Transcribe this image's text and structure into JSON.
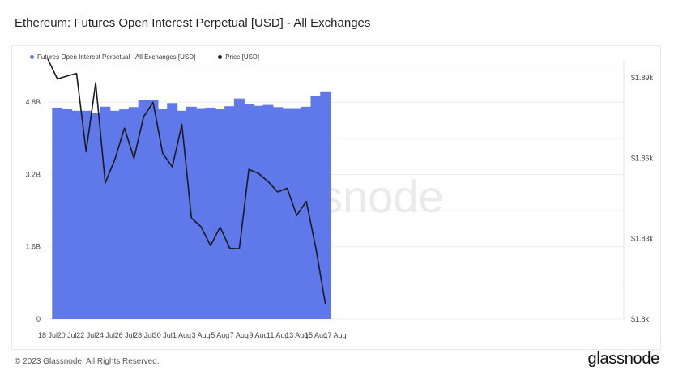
{
  "page": {
    "title": "Ethereum: Futures Open Interest Perpetual [USD] - All Exchanges",
    "footer": "© 2023 Glassnode. All Rights Reserved.",
    "logo": "glassnode",
    "watermark": "glassnode"
  },
  "colors": {
    "bar": "#6079EA",
    "line": "#1a1a1a",
    "grid": "#ececf1"
  },
  "chart_data": {
    "type": "bar+line",
    "title": "Ethereum: Futures Open Interest Perpetual [USD] - All Exchanges",
    "legend_position": "top-left",
    "grid": true,
    "x_ticks": [
      "18 Jul",
      "20 Jul",
      "22 Jul",
      "24 Jul",
      "26 Jul",
      "28 Jul",
      "30 Jul",
      "1 Aug",
      "3 Aug",
      "5 Aug",
      "7 Aug",
      "9 Aug",
      "11 Aug",
      "13 Aug",
      "15 Aug",
      "17 Aug"
    ],
    "y_left": {
      "ticks": [
        "0",
        "1.6B",
        "3.2B",
        "4.8B"
      ],
      "range": [
        0,
        5.7
      ]
    },
    "y_right": {
      "ticks": [
        "$1.8k",
        "$1.83k",
        "$1.86k",
        "$1.89k"
      ],
      "range": [
        1800,
        1896
      ]
    },
    "series": [
      {
        "name": "Futures Open Interest Perpetual - All Exchanges [USD]",
        "kind": "bar",
        "axis": "left",
        "unit": "B USD",
        "x": [
          "19 Jul",
          "20 Jul",
          "21 Jul",
          "22 Jul",
          "23 Jul",
          "24 Jul",
          "25 Jul",
          "26 Jul",
          "27 Jul",
          "28 Jul",
          "29 Jul",
          "30 Jul",
          "31 Jul",
          "1 Aug",
          "2 Aug",
          "3 Aug",
          "4 Aug",
          "5 Aug",
          "6 Aug",
          "7 Aug",
          "8 Aug",
          "9 Aug",
          "10 Aug",
          "11 Aug",
          "12 Aug",
          "13 Aug",
          "14 Aug",
          "15 Aug",
          "16 Aug"
        ],
        "values": [
          4.68,
          4.65,
          4.61,
          4.61,
          4.56,
          4.7,
          4.61,
          4.64,
          4.69,
          4.84,
          4.85,
          4.65,
          4.78,
          4.61,
          4.7,
          4.67,
          4.68,
          4.66,
          4.71,
          4.88,
          4.75,
          4.72,
          4.74,
          4.69,
          4.67,
          4.67,
          4.7,
          4.94,
          5.04
        ]
      },
      {
        "name": "Price [USD]",
        "kind": "line",
        "axis": "right",
        "unit": "USD",
        "x": [
          "18 Jul",
          "19 Jul",
          "20 Jul",
          "21 Jul",
          "22 Jul",
          "23 Jul",
          "24 Jul",
          "25 Jul",
          "26 Jul",
          "27 Jul",
          "28 Jul",
          "29 Jul",
          "30 Jul",
          "31 Jul",
          "1 Aug",
          "2 Aug",
          "3 Aug",
          "4 Aug",
          "5 Aug",
          "6 Aug",
          "7 Aug",
          "8 Aug",
          "9 Aug",
          "10 Aug",
          "11 Aug",
          "12 Aug",
          "13 Aug",
          "14 Aug",
          "15 Aug",
          "16 Aug"
        ],
        "values": [
          1897,
          1889.5,
          1890.6,
          1891.6,
          1862.4,
          1888.1,
          1850.7,
          1859.4,
          1871.2,
          1859.9,
          1875.4,
          1880.8,
          1861.8,
          1856.7,
          1872.6,
          1837.7,
          1834.4,
          1827.4,
          1834.3,
          1826.4,
          1826.2,
          1855.8,
          1854.3,
          1851.3,
          1847.4,
          1848.8,
          1838.6,
          1843.9,
          1826.3,
          1805.4
        ]
      }
    ]
  },
  "legend": [
    {
      "label": "Futures Open Interest Perpetual - All Exchanges [USD]",
      "color": "#6079EA"
    },
    {
      "label": "Price [USD]",
      "color": "#1a1a1a"
    }
  ]
}
